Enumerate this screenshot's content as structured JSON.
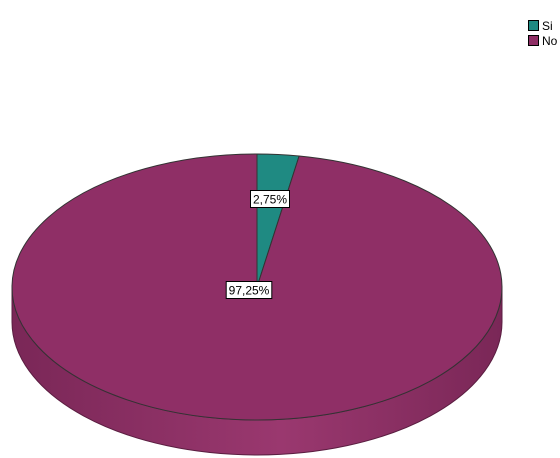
{
  "chart_data": {
    "type": "pie",
    "title": "",
    "categories": [
      "Si",
      "No"
    ],
    "values": [
      2.75,
      97.25
    ],
    "data_labels": [
      "2,75%",
      "97,25%"
    ],
    "colors": [
      "#1f8a82",
      "#8f2f66"
    ],
    "side_colors": [
      "#146b64",
      "#7a2757"
    ],
    "legend_position": "top-right",
    "style": "3d"
  },
  "legend": {
    "items": [
      {
        "label": "Si",
        "color": "#1f8a82"
      },
      {
        "label": "No",
        "color": "#8f2f66"
      }
    ]
  }
}
